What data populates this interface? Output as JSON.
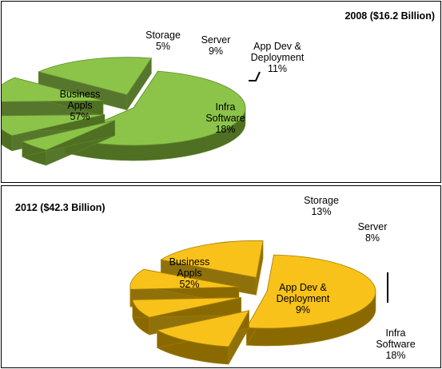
{
  "chart_data": [
    {
      "type": "pie",
      "title": "2008 ($16.2 Billion)",
      "colors": {
        "top": "#8CC449",
        "side": "#4F6F22",
        "edge": "#5F8A2A"
      },
      "slices": [
        {
          "label": [
            "Business",
            "Appls"
          ],
          "value": 57,
          "value_label": "57%"
        },
        {
          "label": [
            "Storage"
          ],
          "value": 5,
          "value_label": "5%"
        },
        {
          "label": [
            "Server"
          ],
          "value": 9,
          "value_label": "9%"
        },
        {
          "label": [
            "App Dev &",
            "Deployment"
          ],
          "value": 11,
          "value_label": "11%"
        },
        {
          "label": [
            "Infra",
            "Software"
          ],
          "value": 18,
          "value_label": "18%"
        }
      ]
    },
    {
      "type": "pie",
      "title": "2012 ($42.3 Billion)",
      "colors": {
        "top": "#F8C21A",
        "side": "#8A6A00",
        "edge": "#A87F00"
      },
      "slices": [
        {
          "label": [
            "Business",
            "Appls"
          ],
          "value": 52,
          "value_label": "52%"
        },
        {
          "label": [
            "Storage"
          ],
          "value": 13,
          "value_label": "13%"
        },
        {
          "label": [
            "Server"
          ],
          "value": 8,
          "value_label": "8%"
        },
        {
          "label": [
            "App Dev &",
            "Deployment"
          ],
          "value": 9,
          "value_label": "9%"
        },
        {
          "label": [
            "Infra",
            "Software"
          ],
          "value": 18,
          "value_label": "18%"
        }
      ]
    }
  ]
}
